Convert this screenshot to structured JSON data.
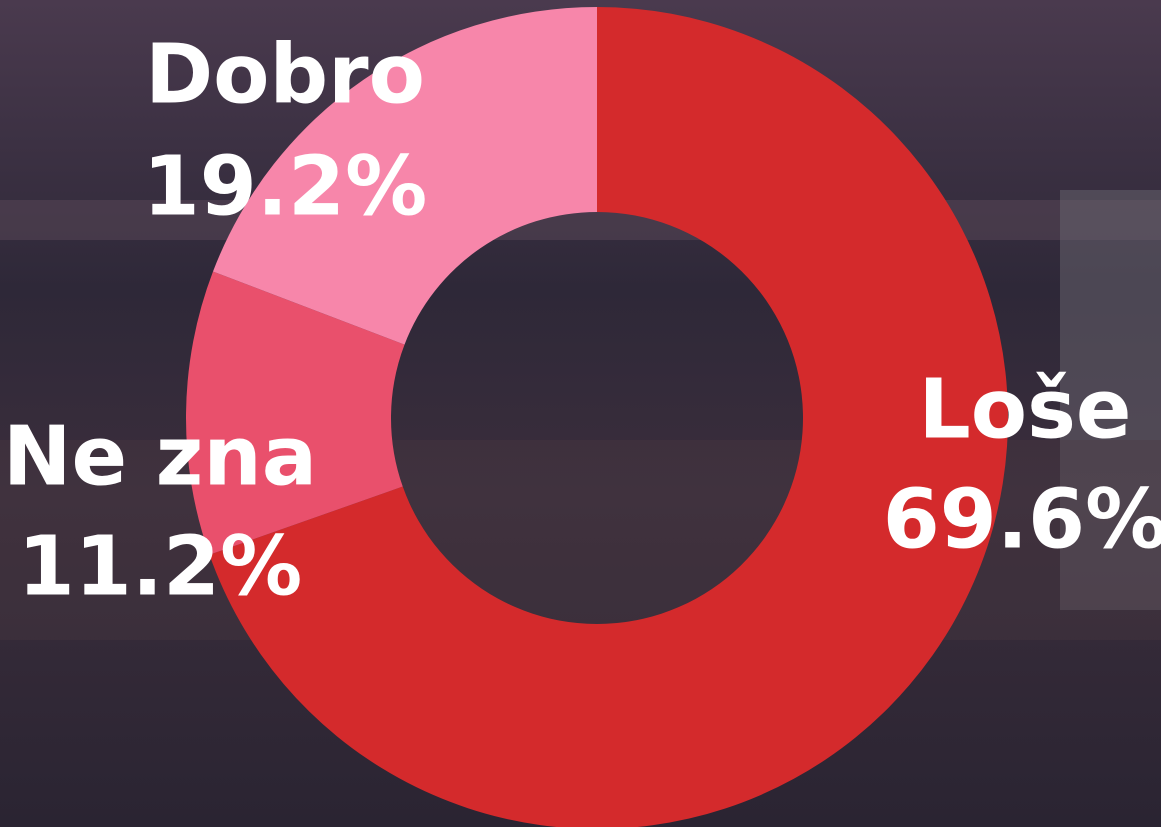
{
  "chart_data": {
    "type": "donut",
    "categories": [
      "Loše",
      "Ne zna",
      "Dobro"
    ],
    "values": [
      69.6,
      11.2,
      19.2
    ],
    "value_labels": [
      "69.6%",
      "11.2%",
      "19.2%"
    ],
    "colors": [
      "#d42a2c",
      "#e9506c",
      "#f786aa"
    ]
  }
}
